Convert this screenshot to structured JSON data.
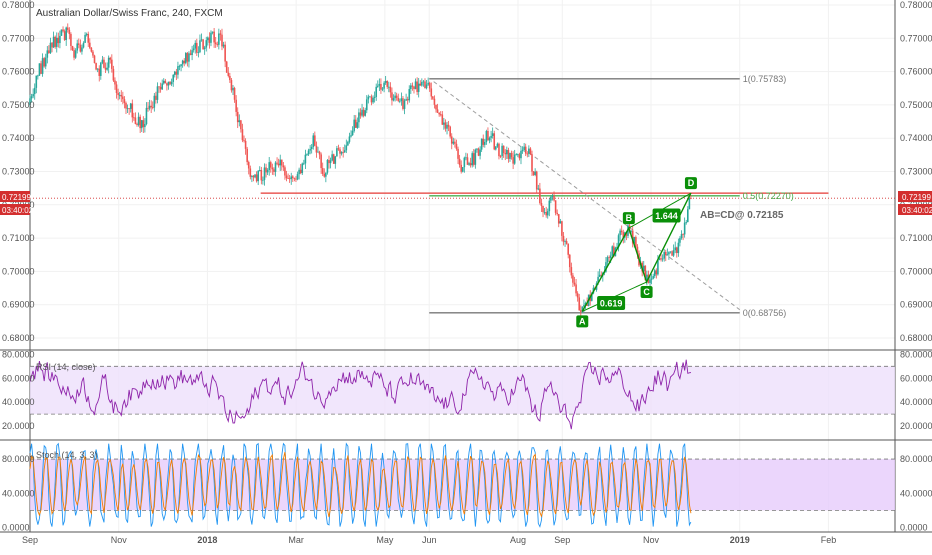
{
  "chart_data": {
    "title": "Australian Dollar/Swiss Franc, 240, FXCM",
    "type": "candlestick",
    "price_scale": {
      "ylim": [
        0.68,
        0.78
      ],
      "ticks": [
        "0.78000",
        "0.77000",
        "0.76000",
        "0.75000",
        "0.74000",
        "0.73000",
        "0.72000",
        "0.71000",
        "0.70000",
        "0.69000",
        "0.68000"
      ],
      "tick_values": [
        0.78,
        0.77,
        0.76,
        0.75,
        0.74,
        0.73,
        0.72,
        0.71,
        0.7,
        0.69,
        0.68
      ]
    },
    "current_price": {
      "label": "0.72199",
      "value": 0.72199,
      "countdown": "03:40:02",
      "color": "#d32f2f"
    },
    "x_ticks": [
      "Sep",
      "Nov",
      "2018",
      "Mar",
      "May",
      "Jun",
      "Aug",
      "Sep",
      "Nov",
      "2019",
      "Feb"
    ],
    "x_tick_months": [
      0,
      2,
      4,
      6,
      8,
      9,
      11,
      12,
      14,
      16,
      18
    ],
    "x_range_months": [
      0,
      19.5
    ],
    "price_path": [
      [
        0,
        0.75
      ],
      [
        0.2,
        0.76
      ],
      [
        0.5,
        0.768
      ],
      [
        0.8,
        0.772
      ],
      [
        1.0,
        0.766
      ],
      [
        1.3,
        0.77
      ],
      [
        1.5,
        0.76
      ],
      [
        1.8,
        0.764
      ],
      [
        2.0,
        0.752
      ],
      [
        2.3,
        0.748
      ],
      [
        2.5,
        0.744
      ],
      [
        2.8,
        0.752
      ],
      [
        3.0,
        0.756
      ],
      [
        3.3,
        0.76
      ],
      [
        3.6,
        0.766
      ],
      [
        3.8,
        0.768
      ],
      [
        4.1,
        0.77
      ],
      [
        4.3,
        0.77
      ],
      [
        4.6,
        0.752
      ],
      [
        4.8,
        0.74
      ],
      [
        5.0,
        0.728
      ],
      [
        5.3,
        0.73
      ],
      [
        5.6,
        0.732
      ],
      [
        6.0,
        0.727
      ],
      [
        6.2,
        0.734
      ],
      [
        6.4,
        0.74
      ],
      [
        6.6,
        0.73
      ],
      [
        7.0,
        0.736
      ],
      [
        7.4,
        0.746
      ],
      [
        7.7,
        0.752
      ],
      [
        8.0,
        0.756
      ],
      [
        8.4,
        0.75
      ],
      [
        8.7,
        0.756
      ],
      [
        9.0,
        0.755
      ],
      [
        9.3,
        0.746
      ],
      [
        9.5,
        0.74
      ],
      [
        9.7,
        0.732
      ],
      [
        10.0,
        0.734
      ],
      [
        10.3,
        0.742
      ],
      [
        10.6,
        0.736
      ],
      [
        11.0,
        0.733
      ],
      [
        11.2,
        0.738
      ],
      [
        11.4,
        0.728
      ],
      [
        11.6,
        0.716
      ],
      [
        11.8,
        0.722
      ],
      [
        12.0,
        0.712
      ],
      [
        12.2,
        0.7
      ],
      [
        12.35,
        0.691
      ],
      [
        12.45,
        0.688
      ],
      [
        12.7,
        0.695
      ],
      [
        13.0,
        0.703
      ],
      [
        13.3,
        0.71
      ],
      [
        13.5,
        0.713
      ],
      [
        13.7,
        0.705
      ],
      [
        13.9,
        0.697
      ],
      [
        14.1,
        0.7
      ],
      [
        14.3,
        0.706
      ],
      [
        14.5,
        0.704
      ],
      [
        14.7,
        0.712
      ],
      [
        14.8,
        0.717
      ],
      [
        14.9,
        0.722
      ]
    ],
    "fib_levels": [
      {
        "label": "1(0.75783)",
        "value": 0.75783,
        "month_start": 9.0,
        "month_end": 16.0,
        "color": "#787878"
      },
      {
        "label": "0.5(0.72270)",
        "value": 0.7227,
        "month_start": 9.0,
        "month_end": 16.0,
        "color": "#4caf50"
      },
      {
        "label": "0(0.68756)",
        "value": 0.68756,
        "month_start": 9.0,
        "month_end": 16.0,
        "color": "#787878"
      }
    ],
    "resistance_line": {
      "value": 0.7235,
      "month_start": 5.2,
      "month_end": 18.0,
      "color": "#e53935"
    },
    "dashed_trendline": {
      "from": [
        9.1,
        0.757
      ],
      "to": [
        16.0,
        0.6885
      ],
      "color": "#9e9e9e"
    },
    "pattern": {
      "color": "#0a8f08",
      "points": [
        {
          "label": "A",
          "month": 12.45,
          "value": 0.688,
          "below": true
        },
        {
          "label": "B",
          "month": 13.5,
          "value": 0.713,
          "below": false
        },
        {
          "label": "C",
          "month": 13.9,
          "value": 0.6968,
          "below": true
        },
        {
          "label": "D",
          "month": 14.9,
          "value": 0.7235,
          "below": false
        }
      ],
      "ratios": [
        {
          "label": "0.619",
          "month": 13.1,
          "value": 0.6905
        },
        {
          "label": "1.644",
          "month": 14.35,
          "value": 0.7168
        }
      ],
      "annotation": "AB=CD@ 0.72185"
    },
    "indicators": [
      {
        "name": "RSI (14, close)",
        "color": "#8e24aa",
        "ylim": [
          10,
          82
        ],
        "ticks": [
          "80.0000",
          "60.0000",
          "40.0000",
          "20.0000"
        ],
        "tick_values": [
          80,
          60,
          40,
          20
        ],
        "band": [
          30,
          70
        ],
        "band_color": "#ede0fb"
      },
      {
        "name": "Stoch (14, 3, 3)",
        "colors": [
          "#2196f3",
          "#f57c00"
        ],
        "ylim": [
          -3,
          100
        ],
        "ticks": [
          "80.0000",
          "40.0000",
          "0.0000"
        ],
        "tick_values": [
          80,
          40,
          0
        ],
        "band": [
          20,
          80
        ],
        "band_color": "#e6ccfb"
      }
    ]
  }
}
